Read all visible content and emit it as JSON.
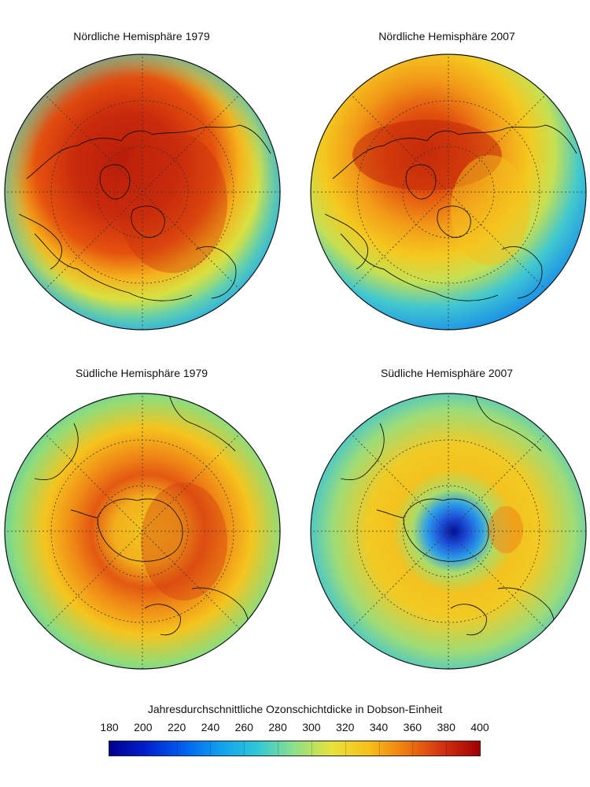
{
  "panels": [
    {
      "id": "nh1979",
      "title": "Nördliche Hemisphäre 1979",
      "hemisphere": "north",
      "year": 1979
    },
    {
      "id": "nh2007",
      "title": "Nördliche Hemisphäre 2007",
      "hemisphere": "north",
      "year": 2007
    },
    {
      "id": "sh1979",
      "title": "Südliche Hemisphäre 1979",
      "hemisphere": "south",
      "year": 1979
    },
    {
      "id": "sh2007",
      "title": "Südliche Hemisphäre 2007",
      "hemisphere": "south",
      "year": 2007
    }
  ],
  "colorbar": {
    "title": "Jahresdurchschnittliche Ozonschichtdicke in Dobson-Einheit",
    "ticks": [
      "180",
      "200",
      "220",
      "240",
      "260",
      "280",
      "300",
      "320",
      "340",
      "360",
      "380",
      "400"
    ],
    "range": [
      180,
      400
    ],
    "colors": [
      "#00008f",
      "#0020d0",
      "#0060f0",
      "#10a0f0",
      "#30c8d8",
      "#8ee08a",
      "#e6e23a",
      "#f8c01a",
      "#f07a10",
      "#d23010",
      "#a00000"
    ]
  }
}
